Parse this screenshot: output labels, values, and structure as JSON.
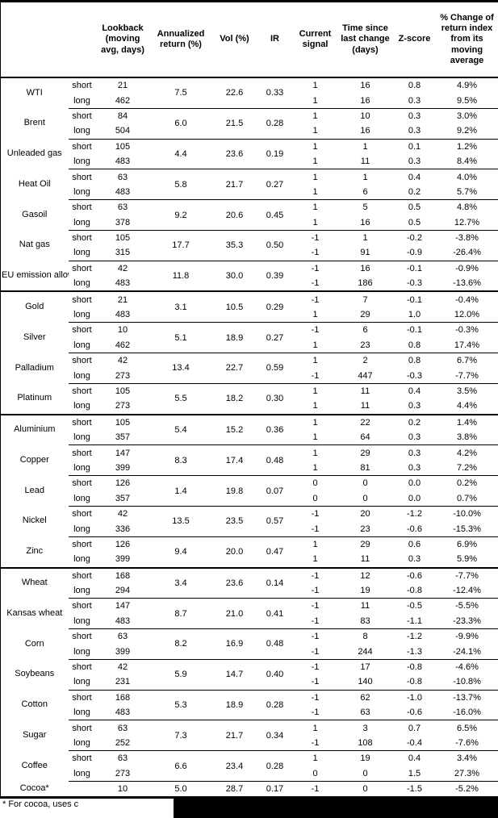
{
  "table": {
    "headers": {
      "name": "",
      "leg": "",
      "lookback": "Lookback (moving avg, days)",
      "annualized": "Annualized return (%)",
      "vol": "Vol (%)",
      "ir": "IR",
      "signal": "Current signal",
      "time_since": "Time since last change (days)",
      "zscore": "Z-score",
      "pct_change": "% Change of return index from its moving average"
    },
    "groups": [
      {
        "name": "WTI",
        "section": false,
        "ann": "7.5",
        "vol": "22.6",
        "ir": "0.33",
        "sub": [
          {
            "leg": "short",
            "lookback": "21",
            "signal": "1",
            "time": "16",
            "z": "0.8",
            "pct": "4.9%"
          },
          {
            "leg": "long",
            "lookback": "462",
            "signal": "1",
            "time": "16",
            "z": "0.3",
            "pct": "9.5%"
          }
        ]
      },
      {
        "name": "Brent",
        "section": false,
        "ann": "6.0",
        "vol": "21.5",
        "ir": "0.28",
        "sub": [
          {
            "leg": "short",
            "lookback": "84",
            "signal": "1",
            "time": "10",
            "z": "0.3",
            "pct": "3.0%"
          },
          {
            "leg": "long",
            "lookback": "504",
            "signal": "1",
            "time": "16",
            "z": "0.3",
            "pct": "9.2%"
          }
        ]
      },
      {
        "name": "Unleaded gas",
        "section": false,
        "ann": "4.4",
        "vol": "23.6",
        "ir": "0.19",
        "sub": [
          {
            "leg": "short",
            "lookback": "105",
            "signal": "1",
            "time": "1",
            "z": "0.1",
            "pct": "1.2%"
          },
          {
            "leg": "long",
            "lookback": "483",
            "signal": "1",
            "time": "11",
            "z": "0.3",
            "pct": "8.4%"
          }
        ]
      },
      {
        "name": "Heat Oil",
        "section": false,
        "ann": "5.8",
        "vol": "21.7",
        "ir": "0.27",
        "sub": [
          {
            "leg": "short",
            "lookback": "63",
            "signal": "1",
            "time": "1",
            "z": "0.4",
            "pct": "4.0%"
          },
          {
            "leg": "long",
            "lookback": "483",
            "signal": "1",
            "time": "6",
            "z": "0.2",
            "pct": "5.7%"
          }
        ]
      },
      {
        "name": "Gasoil",
        "section": false,
        "ann": "9.2",
        "vol": "20.6",
        "ir": "0.45",
        "sub": [
          {
            "leg": "short",
            "lookback": "63",
            "signal": "1",
            "time": "5",
            "z": "0.5",
            "pct": "4.8%"
          },
          {
            "leg": "long",
            "lookback": "378",
            "signal": "1",
            "time": "16",
            "z": "0.5",
            "pct": "12.7%"
          }
        ]
      },
      {
        "name": "Nat gas",
        "section": false,
        "ann": "17.7",
        "vol": "35.3",
        "ir": "0.50",
        "sub": [
          {
            "leg": "short",
            "lookback": "105",
            "signal": "-1",
            "time": "1",
            "z": "-0.2",
            "pct": "-3.8%"
          },
          {
            "leg": "long",
            "lookback": "315",
            "signal": "-1",
            "time": "91",
            "z": "-0.9",
            "pct": "-26.4%"
          }
        ]
      },
      {
        "name": "EU emission allowances",
        "section": false,
        "ann": "11.8",
        "vol": "30.0",
        "ir": "0.39",
        "sub": [
          {
            "leg": "short",
            "lookback": "42",
            "signal": "-1",
            "time": "16",
            "z": "-0.1",
            "pct": "-0.9%"
          },
          {
            "leg": "long",
            "lookback": "483",
            "signal": "-1",
            "time": "186",
            "z": "-0.3",
            "pct": "-13.6%"
          }
        ]
      },
      {
        "name": "Gold",
        "section": true,
        "ann": "3.1",
        "vol": "10.5",
        "ir": "0.29",
        "sub": [
          {
            "leg": "short",
            "lookback": "21",
            "signal": "-1",
            "time": "7",
            "z": "-0.1",
            "pct": "-0.4%"
          },
          {
            "leg": "long",
            "lookback": "483",
            "signal": "1",
            "time": "29",
            "z": "1.0",
            "pct": "12.0%"
          }
        ]
      },
      {
        "name": "Silver",
        "section": false,
        "ann": "5.1",
        "vol": "18.9",
        "ir": "0.27",
        "sub": [
          {
            "leg": "short",
            "lookback": "10",
            "signal": "-1",
            "time": "6",
            "z": "-0.1",
            "pct": "-0.3%"
          },
          {
            "leg": "long",
            "lookback": "462",
            "signal": "1",
            "time": "23",
            "z": "0.8",
            "pct": "17.4%"
          }
        ]
      },
      {
        "name": "Palladium",
        "section": false,
        "ann": "13.4",
        "vol": "22.7",
        "ir": "0.59",
        "sub": [
          {
            "leg": "short",
            "lookback": "42",
            "signal": "1",
            "time": "2",
            "z": "0.8",
            "pct": "6.7%"
          },
          {
            "leg": "long",
            "lookback": "273",
            "signal": "-1",
            "time": "447",
            "z": "-0.3",
            "pct": "-7.7%"
          }
        ]
      },
      {
        "name": "Platinum",
        "section": false,
        "ann": "5.5",
        "vol": "18.2",
        "ir": "0.30",
        "sub": [
          {
            "leg": "short",
            "lookback": "105",
            "signal": "1",
            "time": "11",
            "z": "0.4",
            "pct": "3.5%"
          },
          {
            "leg": "long",
            "lookback": "273",
            "signal": "1",
            "time": "11",
            "z": "0.3",
            "pct": "4.4%"
          }
        ]
      },
      {
        "name": "Aluminium",
        "section": true,
        "ann": "5.4",
        "vol": "15.2",
        "ir": "0.36",
        "sub": [
          {
            "leg": "short",
            "lookback": "105",
            "signal": "1",
            "time": "22",
            "z": "0.2",
            "pct": "1.4%"
          },
          {
            "leg": "long",
            "lookback": "357",
            "signal": "1",
            "time": "64",
            "z": "0.3",
            "pct": "3.8%"
          }
        ]
      },
      {
        "name": "Copper",
        "section": false,
        "ann": "8.3",
        "vol": "17.4",
        "ir": "0.48",
        "sub": [
          {
            "leg": "short",
            "lookback": "147",
            "signal": "1",
            "time": "29",
            "z": "0.3",
            "pct": "4.2%"
          },
          {
            "leg": "long",
            "lookback": "399",
            "signal": "1",
            "time": "81",
            "z": "0.3",
            "pct": "7.2%"
          }
        ]
      },
      {
        "name": "Lead",
        "section": false,
        "ann": "1.4",
        "vol": "19.8",
        "ir": "0.07",
        "sub": [
          {
            "leg": "short",
            "lookback": "126",
            "signal": "0",
            "time": "0",
            "z": "0.0",
            "pct": "0.2%"
          },
          {
            "leg": "long",
            "lookback": "357",
            "signal": "0",
            "time": "0",
            "z": "0.0",
            "pct": "0.7%"
          }
        ]
      },
      {
        "name": "Nickel",
        "section": false,
        "ann": "13.5",
        "vol": "23.5",
        "ir": "0.57",
        "sub": [
          {
            "leg": "short",
            "lookback": "42",
            "signal": "-1",
            "time": "20",
            "z": "-1.2",
            "pct": "-10.0%"
          },
          {
            "leg": "long",
            "lookback": "336",
            "signal": "-1",
            "time": "23",
            "z": "-0.6",
            "pct": "-15.3%"
          }
        ]
      },
      {
        "name": "Zinc",
        "section": false,
        "ann": "9.4",
        "vol": "20.0",
        "ir": "0.47",
        "sub": [
          {
            "leg": "short",
            "lookback": "126",
            "signal": "1",
            "time": "29",
            "z": "0.6",
            "pct": "6.9%"
          },
          {
            "leg": "long",
            "lookback": "399",
            "signal": "1",
            "time": "11",
            "z": "0.3",
            "pct": "5.9%"
          }
        ]
      },
      {
        "name": "Wheat",
        "section": true,
        "ann": "3.4",
        "vol": "23.6",
        "ir": "0.14",
        "sub": [
          {
            "leg": "short",
            "lookback": "168",
            "signal": "-1",
            "time": "12",
            "z": "-0.6",
            "pct": "-7.7%"
          },
          {
            "leg": "long",
            "lookback": "294",
            "signal": "-1",
            "time": "19",
            "z": "-0.8",
            "pct": "-12.4%"
          }
        ]
      },
      {
        "name": "Kansas wheat",
        "section": false,
        "ann": "8.7",
        "vol": "21.0",
        "ir": "0.41",
        "sub": [
          {
            "leg": "short",
            "lookback": "147",
            "signal": "-1",
            "time": "11",
            "z": "-0.5",
            "pct": "-5.5%"
          },
          {
            "leg": "long",
            "lookback": "483",
            "signal": "-1",
            "time": "83",
            "z": "-1.1",
            "pct": "-23.3%"
          }
        ]
      },
      {
        "name": "Corn",
        "section": false,
        "ann": "8.2",
        "vol": "16.9",
        "ir": "0.48",
        "sub": [
          {
            "leg": "short",
            "lookback": "63",
            "signal": "-1",
            "time": "8",
            "z": "-1.2",
            "pct": "-9.9%"
          },
          {
            "leg": "long",
            "lookback": "399",
            "signal": "-1",
            "time": "244",
            "z": "-1.3",
            "pct": "-24.1%"
          }
        ]
      },
      {
        "name": "Soybeans",
        "section": false,
        "ann": "5.9",
        "vol": "14.7",
        "ir": "0.40",
        "sub": [
          {
            "leg": "short",
            "lookback": "42",
            "signal": "-1",
            "time": "17",
            "z": "-0.8",
            "pct": "-4.6%"
          },
          {
            "leg": "long",
            "lookback": "231",
            "signal": "-1",
            "time": "140",
            "z": "-0.8",
            "pct": "-10.8%"
          }
        ]
      },
      {
        "name": "Cotton",
        "section": false,
        "ann": "5.3",
        "vol": "18.9",
        "ir": "0.28",
        "sub": [
          {
            "leg": "short",
            "lookback": "168",
            "signal": "-1",
            "time": "62",
            "z": "-1.0",
            "pct": "-13.7%"
          },
          {
            "leg": "long",
            "lookback": "483",
            "signal": "-1",
            "time": "63",
            "z": "-0.6",
            "pct": "-16.0%"
          }
        ]
      },
      {
        "name": "Sugar",
        "section": false,
        "ann": "7.3",
        "vol": "21.7",
        "ir": "0.34",
        "sub": [
          {
            "leg": "short",
            "lookback": "63",
            "signal": "1",
            "time": "3",
            "z": "0.7",
            "pct": "6.5%"
          },
          {
            "leg": "long",
            "lookback": "252",
            "signal": "-1",
            "time": "108",
            "z": "-0.4",
            "pct": "-7.6%"
          }
        ]
      },
      {
        "name": "Coffee",
        "section": false,
        "ann": "6.6",
        "vol": "23.4",
        "ir": "0.28",
        "sub": [
          {
            "leg": "short",
            "lookback": "63",
            "signal": "1",
            "time": "19",
            "z": "0.4",
            "pct": "3.4%"
          },
          {
            "leg": "long",
            "lookback": "273",
            "signal": "0",
            "time": "0",
            "z": "1.5",
            "pct": "27.3%"
          }
        ]
      },
      {
        "name": "Cocoa*",
        "section": false,
        "ann": "5.0",
        "vol": "28.7",
        "ir": "0.17",
        "sub": [
          {
            "leg": "",
            "lookback": "10",
            "signal": "-1",
            "time": "0",
            "z": "-1.5",
            "pct": "-5.2%"
          }
        ]
      }
    ]
  },
  "footnote": {
    "text": "* For cocoa, uses c"
  },
  "colors": {
    "text": "#000000",
    "background": "#ffffff",
    "border": "#000000",
    "redaction": "#000000"
  }
}
